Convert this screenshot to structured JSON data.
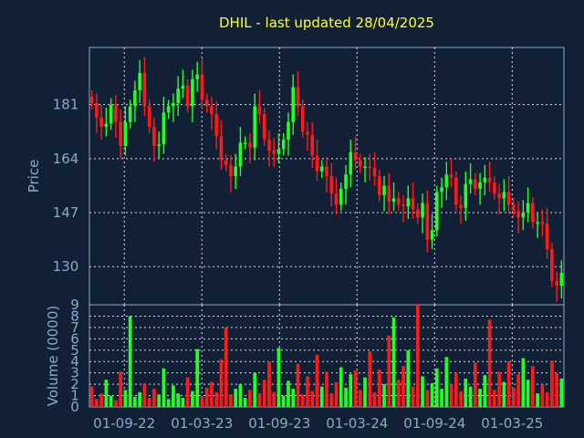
{
  "chart_data": [
    {
      "type": "candlestick",
      "title": "DHIL - last updated 28/04/2025",
      "ylabel": "Price",
      "ylim": [
        118,
        199
      ],
      "yticks": [
        130,
        147,
        164,
        181
      ],
      "ytick_labels": [
        "130",
        "147",
        "164",
        "181"
      ],
      "xtick_labels": [
        "01-09-22",
        "01-03-23",
        "01-09-23",
        "01-03-24",
        "01-09-24",
        "01-03-25"
      ],
      "grid": true,
      "colors": {
        "up": "#22ff22",
        "down": "#ff1a1a"
      },
      "series": [
        {
          "close": [
            181.5,
            177.0,
            174.0,
            175.0,
            181.0,
            175.5,
            168.0,
            175.5,
            180.5,
            185.5,
            191.0,
            180.5,
            174.0,
            168.0,
            168.5,
            178.5,
            180.5,
            181.5,
            186.0,
            187.0,
            180.5,
            189.0,
            190.5,
            182.5,
            180.5,
            178.0,
            171.0,
            163.5,
            162.0,
            158.5,
            161.5,
            169.0,
            169.0,
            167.5,
            180.5,
            178.0,
            170.0,
            166.5,
            165.5,
            167.0,
            170.0,
            175.5,
            186.5,
            180.5,
            172.5,
            171.5,
            165.0,
            160.0,
            161.5,
            158.5,
            153.0,
            149.5,
            154.5,
            159.0,
            166.0,
            163.5,
            161.5,
            161.5,
            161.0,
            158.5,
            152.5,
            155.5,
            150.5,
            151.5,
            149.5,
            149.0,
            151.5,
            148.0,
            145.5,
            150.0,
            138.5,
            141.5,
            153.5,
            155.0,
            159.0,
            158.0,
            149.5,
            148.5,
            156.0,
            157.5,
            154.5,
            156.5,
            158.0,
            156.5,
            153.0,
            151.5,
            153.5,
            149.5,
            147.5,
            145.5,
            147.0,
            150.0,
            144.0,
            144.0,
            143.5,
            135.5,
            125.5,
            124.0,
            128.0
          ]
        }
      ]
    },
    {
      "type": "bar",
      "ylabel": "Volume (0000)",
      "ylim": [
        0,
        9
      ],
      "yticks": [
        0,
        1,
        2,
        3,
        4,
        5,
        6,
        7,
        8,
        9
      ],
      "ytick_labels": [
        "0",
        "1",
        "2",
        "3",
        "4",
        "5",
        "6",
        "7",
        "8",
        "9"
      ],
      "grid": true,
      "series": [
        {
          "values": [
            1.8,
            0.7,
            1.2,
            2.4,
            1.0,
            0.6,
            3.1,
            1.5,
            8.0,
            0.9,
            1.3,
            2.1,
            0.8,
            1.6,
            1.1,
            3.4,
            0.7,
            1.9,
            1.2,
            0.8,
            2.6,
            1.4,
            5.1,
            0.9,
            1.7,
            2.2,
            1.3,
            4.2,
            7.0,
            1.1,
            1.6,
            2.0,
            0.8,
            1.5,
            3.0,
            1.2,
            2.4,
            4.0,
            1.3,
            5.2,
            1.0,
            2.3,
            1.6,
            3.8,
            1.1,
            2.7,
            1.4,
            4.6,
            1.8,
            3.1,
            1.2,
            2.2,
            3.5,
            1.7,
            2.9,
            3.2,
            1.5,
            2.6,
            4.9,
            1.3,
            3.3,
            2.0,
            6.3,
            7.9,
            2.4,
            3.6,
            5.0,
            1.8,
            9.0,
            2.7,
            1.5,
            2.1,
            3.4,
            1.6,
            4.4,
            2.0,
            3.0,
            1.4,
            2.5,
            1.8,
            3.9,
            1.6,
            2.8,
            7.7,
            1.5,
            3.1,
            2.2,
            4.0,
            1.7,
            2.9,
            4.3,
            2.4,
            3.6,
            1.2,
            2.0,
            1.3,
            4.1,
            3.0,
            2.5
          ]
        }
      ]
    }
  ]
}
